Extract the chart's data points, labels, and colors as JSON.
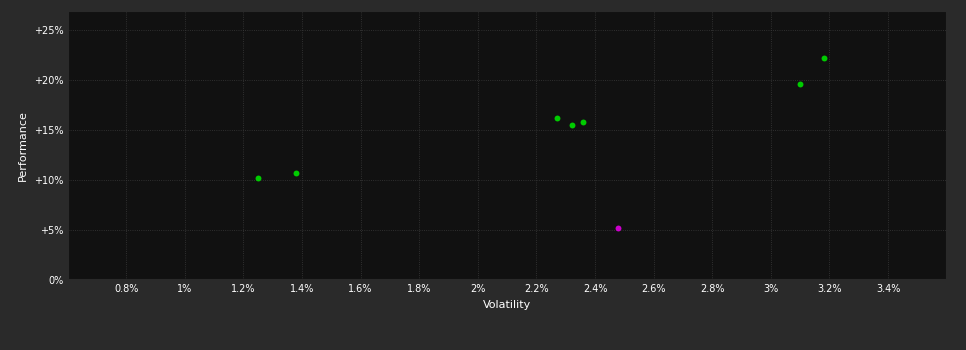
{
  "background_color": "#2a2a2a",
  "plot_bg_color": "#111111",
  "grid_color": "#3a3a3a",
  "text_color": "#ffffff",
  "xlabel": "Volatility",
  "ylabel": "Performance",
  "xlim": [
    0.006,
    0.036
  ],
  "ylim": [
    0.0,
    0.27
  ],
  "xticks": [
    0.008,
    0.01,
    0.012,
    0.014,
    0.016,
    0.018,
    0.02,
    0.022,
    0.024,
    0.026,
    0.028,
    0.03,
    0.032,
    0.034
  ],
  "yticks": [
    0.0,
    0.05,
    0.1,
    0.15,
    0.2,
    0.25
  ],
  "ytick_labels": [
    "0%",
    "+5%",
    "+10%",
    "+15%",
    "+20%",
    "+25%"
  ],
  "xtick_labels": [
    "0.8%",
    "1%",
    "1.2%",
    "1.4%",
    "1.6%",
    "1.8%",
    "2%",
    "2.2%",
    "2.4%",
    "2.6%",
    "2.8%",
    "3%",
    "3.2%",
    "3.4%"
  ],
  "points_green": [
    [
      0.0125,
      0.102
    ],
    [
      0.0138,
      0.107
    ],
    [
      0.0227,
      0.162
    ],
    [
      0.0232,
      0.155
    ],
    [
      0.0236,
      0.158
    ],
    [
      0.031,
      0.196
    ],
    [
      0.0318,
      0.222
    ]
  ],
  "points_magenta": [
    [
      0.0248,
      0.052
    ]
  ],
  "green_color": "#00cc00",
  "magenta_color": "#cc00cc",
  "marker_size": 18,
  "font_size_ticks": 7,
  "font_size_label": 8
}
